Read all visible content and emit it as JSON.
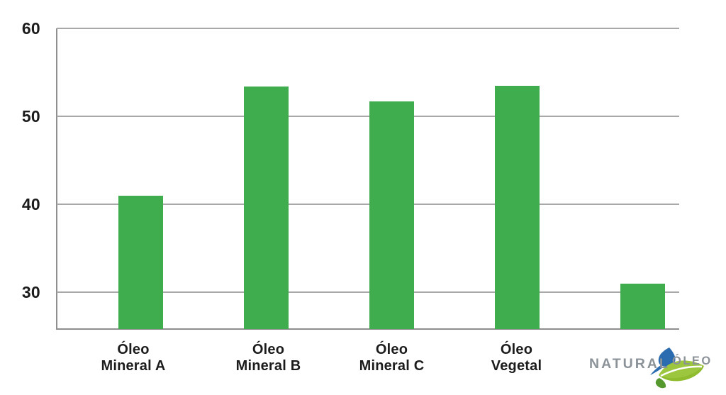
{
  "chart_data": {
    "type": "bar",
    "title": "",
    "categories": [
      "Óleo Mineral A",
      "Óleo Mineral B",
      "Óleo Mineral C",
      "Óleo Vegetal",
      ""
    ],
    "category_lines": [
      [
        "Óleo",
        "Mineral A"
      ],
      [
        "Óleo",
        "Mineral B"
      ],
      [
        "Óleo",
        "Mineral C"
      ],
      [
        "Óleo",
        "Vegetal"
      ],
      []
    ],
    "values": [
      41,
      53.4,
      51.7,
      53.5,
      31
    ],
    "xlabel": "",
    "ylabel": "",
    "y_ticks": [
      60,
      50,
      40,
      30
    ],
    "ylim": [
      25.8,
      60
    ],
    "grid": true,
    "legend": false,
    "bar_color": "#3fac4e",
    "gridline_color": "#a8a8a8",
    "axis_color": "#8f8f8f",
    "tick_label_color": "#1c1c1c"
  },
  "logo": {
    "name_part1": "NATURAL",
    "name_part2": "ÓLEO",
    "text_color": "#8b9298",
    "leaf_green": "#9cc63e",
    "leaf_dark_green": "#8ebc2e",
    "accent_drop_green": "#55992e",
    "drop_blue": "#2b6cb0"
  }
}
